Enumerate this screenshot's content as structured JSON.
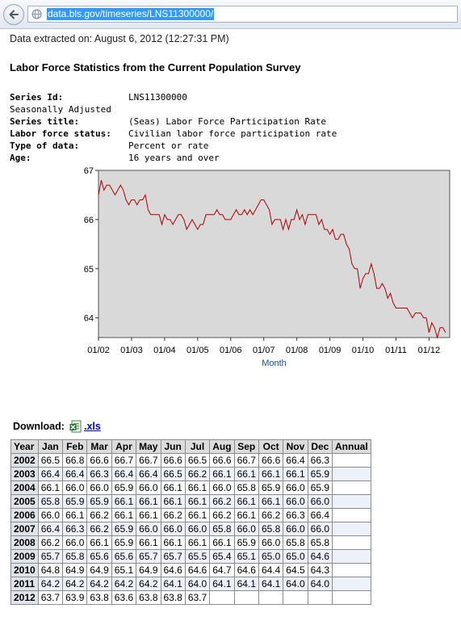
{
  "browser": {
    "url": "data.bls.gov/timeseries/LNS11300000/"
  },
  "page": {
    "extracted": "Data extracted on: August 6, 2012 (12:27:31 PM)",
    "title": "Labor Force Statistics from the Current Population Survey"
  },
  "series_info": [
    {
      "label": "Series Id:",
      "value": "LNS11300000"
    },
    {
      "label": "Seasonally Adjusted",
      "value": ""
    },
    {
      "label": "Series title:",
      "value": "(Seas) Labor Force Participation Rate"
    },
    {
      "label": "Labor force status:",
      "value": "Civilian labor force participation rate"
    },
    {
      "label": "Type of data:",
      "value": "Percent or rate"
    },
    {
      "label": "Age:",
      "value": "16 years and over"
    }
  ],
  "chart_data": {
    "type": "line",
    "title": "",
    "xlabel": "Month",
    "ylabel": "",
    "ylim": [
      63.6,
      67.0
    ],
    "yticks": [
      64,
      65,
      66,
      67
    ],
    "xticks": [
      "01/02",
      "01/03",
      "01/04",
      "01/05",
      "01/06",
      "01/07",
      "01/08",
      "01/09",
      "01/10",
      "01/11",
      "01/12"
    ],
    "grid": false,
    "legend": "none",
    "line_color": "#b00000",
    "plot_background": "#d9d9d9",
    "x_start": "2002-01",
    "series": [
      {
        "values": [
          66.5,
          66.8,
          66.6,
          66.7,
          66.7,
          66.6,
          66.5,
          66.6,
          66.7,
          66.6,
          66.4,
          66.3,
          66.4,
          66.4,
          66.3,
          66.4,
          66.4,
          66.5,
          66.2,
          66.1,
          66.1,
          66.1,
          66.1,
          65.9,
          66.1,
          66.0,
          66.0,
          65.9,
          66.0,
          66.1,
          66.1,
          66.0,
          65.8,
          65.9,
          66.0,
          65.9,
          65.8,
          65.9,
          65.9,
          66.1,
          66.1,
          66.1,
          66.1,
          66.2,
          66.1,
          66.1,
          66.0,
          66.0,
          66.0,
          66.1,
          66.2,
          66.1,
          66.1,
          66.2,
          66.1,
          66.2,
          66.1,
          66.2,
          66.3,
          66.4,
          66.4,
          66.3,
          66.2,
          65.9,
          66.0,
          66.0,
          66.0,
          65.8,
          66.0,
          65.8,
          66.0,
          66.0,
          66.2,
          66.0,
          66.1,
          65.9,
          66.1,
          66.1,
          66.1,
          66.1,
          65.9,
          66.0,
          65.8,
          65.8,
          65.7,
          65.8,
          65.6,
          65.6,
          65.7,
          65.7,
          65.5,
          65.4,
          65.1,
          65.0,
          65.0,
          64.6,
          64.8,
          64.9,
          64.9,
          65.1,
          64.9,
          64.6,
          64.6,
          64.7,
          64.6,
          64.4,
          64.5,
          64.3,
          64.2,
          64.2,
          64.2,
          64.2,
          64.2,
          64.1,
          64.0,
          64.1,
          64.1,
          64.1,
          64.0,
          64.0,
          63.7,
          63.9,
          63.8,
          63.6,
          63.8,
          63.8,
          63.7
        ]
      }
    ]
  },
  "download": {
    "label": "Download:",
    "icon": "excel-file-icon",
    "link": ".xls"
  },
  "table": {
    "headers": [
      "Year",
      "Jan",
      "Feb",
      "Mar",
      "Apr",
      "May",
      "Jun",
      "Jul",
      "Aug",
      "Sep",
      "Oct",
      "Nov",
      "Dec",
      "Annual"
    ],
    "rows": [
      {
        "year": "2002",
        "values": [
          "66.5",
          "66.8",
          "66.6",
          "66.7",
          "66.7",
          "66.6",
          "66.5",
          "66.6",
          "66.7",
          "66.6",
          "66.4",
          "66.3",
          ""
        ]
      },
      {
        "year": "2003",
        "values": [
          "66.4",
          "66.4",
          "66.3",
          "66.4",
          "66.4",
          "66.5",
          "66.2",
          "66.1",
          "66.1",
          "66.1",
          "66.1",
          "65.9",
          ""
        ]
      },
      {
        "year": "2004",
        "values": [
          "66.1",
          "66.0",
          "66.0",
          "65.9",
          "66.0",
          "66.1",
          "66.1",
          "66.0",
          "65.8",
          "65.9",
          "66.0",
          "65.9",
          ""
        ]
      },
      {
        "year": "2005",
        "values": [
          "65.8",
          "65.9",
          "65.9",
          "66.1",
          "66.1",
          "66.1",
          "66.1",
          "66.2",
          "66.1",
          "66.1",
          "66.0",
          "66.0",
          ""
        ]
      },
      {
        "year": "2006",
        "values": [
          "66.0",
          "66.1",
          "66.2",
          "66.1",
          "66.1",
          "66.2",
          "66.1",
          "66.2",
          "66.1",
          "66.2",
          "66.3",
          "66.4",
          ""
        ]
      },
      {
        "year": "2007",
        "values": [
          "66.4",
          "66.3",
          "66.2",
          "65.9",
          "66.0",
          "66.0",
          "66.0",
          "65.8",
          "66.0",
          "65.8",
          "66.0",
          "66.0",
          ""
        ]
      },
      {
        "year": "2008",
        "values": [
          "66.2",
          "66.0",
          "66.1",
          "65.9",
          "66.1",
          "66.1",
          "66.1",
          "66.1",
          "65.9",
          "66.0",
          "65.8",
          "65.8",
          ""
        ]
      },
      {
        "year": "2009",
        "values": [
          "65.7",
          "65.8",
          "65.6",
          "65.6",
          "65.7",
          "65.7",
          "65.5",
          "65.4",
          "65.1",
          "65.0",
          "65.0",
          "64.6",
          ""
        ]
      },
      {
        "year": "2010",
        "values": [
          "64.8",
          "64.9",
          "64.9",
          "65.1",
          "64.9",
          "64.6",
          "64.6",
          "64.7",
          "64.6",
          "64.4",
          "64.5",
          "64.3",
          ""
        ]
      },
      {
        "year": "2011",
        "values": [
          "64.2",
          "64.2",
          "64.2",
          "64.2",
          "64.2",
          "64.1",
          "64.0",
          "64.1",
          "64.1",
          "64.1",
          "64.0",
          "64.0",
          ""
        ]
      },
      {
        "year": "2012",
        "values": [
          "63.7",
          "63.9",
          "63.8",
          "63.6",
          "63.8",
          "63.8",
          "63.7",
          "",
          "",
          "",
          "",
          "",
          ""
        ]
      }
    ]
  }
}
